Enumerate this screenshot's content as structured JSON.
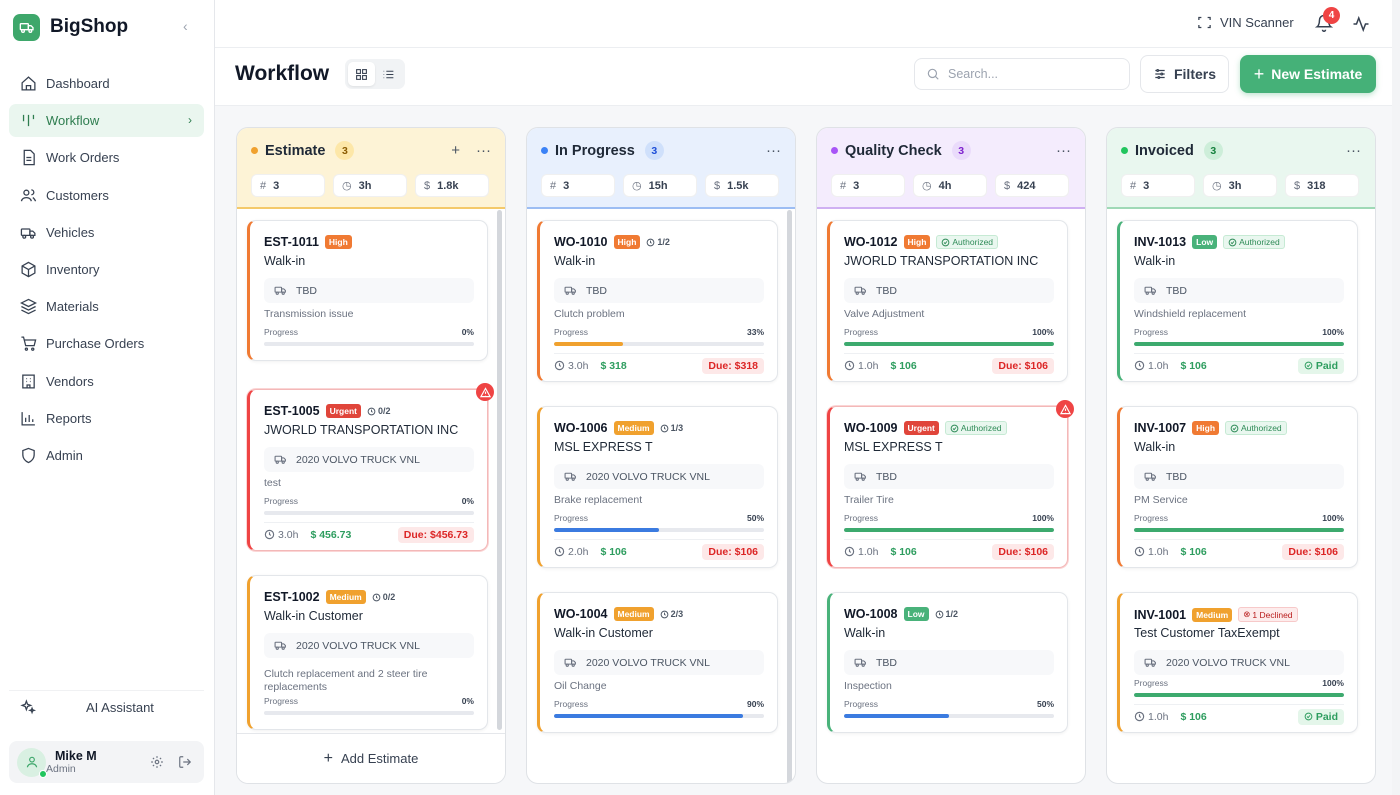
{
  "app": {
    "name": "BigShop"
  },
  "sidebar": {
    "items": [
      {
        "label": "Dashboard",
        "icon": "home-icon"
      },
      {
        "label": "Workflow",
        "icon": "workflow-icon",
        "active": true
      },
      {
        "label": "Work Orders",
        "icon": "document-icon"
      },
      {
        "label": "Customers",
        "icon": "users-icon"
      },
      {
        "label": "Vehicles",
        "icon": "truck-icon"
      },
      {
        "label": "Inventory",
        "icon": "box-icon"
      },
      {
        "label": "Materials",
        "icon": "layers-icon"
      },
      {
        "label": "Purchase Orders",
        "icon": "cart-icon"
      },
      {
        "label": "Vendors",
        "icon": "building-icon"
      },
      {
        "label": "Reports",
        "icon": "chart-icon"
      },
      {
        "label": "Admin",
        "icon": "shield-icon"
      }
    ],
    "ai_label": "AI Assistant",
    "user": {
      "name": "Mike M",
      "role": "Admin"
    }
  },
  "topbar": {
    "vin_label": "VIN Scanner",
    "notifications": "4"
  },
  "header": {
    "title": "Workflow",
    "search_placeholder": "Search...",
    "filters_label": "Filters",
    "new_estimate_label": "New Estimate"
  },
  "columns": [
    {
      "title": "Estimate",
      "count": "3",
      "dot": "#f0a12e",
      "count_bg": "#fde7a8",
      "count_color": "#8a5a00",
      "head_bg": "#fdf3d6",
      "border": "#f4c96a",
      "stats": [
        "3",
        "3h",
        "1.8k"
      ],
      "show_add": true,
      "footer": "Add Estimate",
      "cards": [
        {
          "id": "EST-1011",
          "priority": "High",
          "customer": "Walk-in",
          "vehicle": "TBD",
          "desc": "Transmission issue",
          "progress_label": "Progress",
          "progress": 0,
          "progress_text": "0%",
          "accent": "#f07a33"
        },
        {
          "id": "EST-1005",
          "priority": "Urgent",
          "tasks": "0/2",
          "customer": "JWORLD TRANSPORTATION INC",
          "vehicle": "2020 VOLVO TRUCK VNL",
          "desc": "test",
          "progress_label": "Progress",
          "progress": 0,
          "progress_text": "0%",
          "hours": "3.0h",
          "amount": "456.73",
          "due": "Due: $456.73",
          "accent": "#ef4444",
          "urgent": true
        },
        {
          "id": "EST-1002",
          "priority": "Medium",
          "tasks": "0/2",
          "customer": "Walk-in Customer",
          "vehicle": "2020 VOLVO TRUCK VNL",
          "desc": "Clutch replacement and 2 steer tire replacements",
          "progress_label": "Progress",
          "progress": 0,
          "progress_text": "0%",
          "accent": "#f0a12e"
        }
      ]
    },
    {
      "title": "In Progress",
      "count": "3",
      "dot": "#3b82f6",
      "count_bg": "#cfe0fb",
      "count_color": "#1d4ed8",
      "head_bg": "#e8f0fd",
      "border": "#9cbdf3",
      "stats": [
        "3",
        "15h",
        "1.5k"
      ],
      "cards": [
        {
          "id": "WO-1010",
          "priority": "High",
          "tasks": "1/2",
          "customer": "Walk-in",
          "vehicle": "TBD",
          "desc": "Clutch problem",
          "progress_label": "Progress",
          "progress": 33,
          "progress_text": "33%",
          "bar": "#f0a12e",
          "hours": "3.0h",
          "amount": "318",
          "due": "Due: $318",
          "accent": "#f07a33"
        },
        {
          "id": "WO-1006",
          "priority": "Medium",
          "tasks": "1/3",
          "customer": "MSL EXPRESS T",
          "vehicle": "2020 VOLVO TRUCK VNL",
          "desc": "Brake replacement",
          "progress_label": "Progress",
          "progress": 50,
          "progress_text": "50%",
          "bar": "#3b7be0",
          "hours": "2.0h",
          "amount": "106",
          "due": "Due: $106",
          "accent": "#f0a12e"
        },
        {
          "id": "WO-1004",
          "priority": "Medium",
          "tasks": "2/3",
          "customer": "Walk-in Customer",
          "vehicle": "2020 VOLVO TRUCK VNL",
          "desc": "Oil Change",
          "progress_label": "Progress",
          "progress": 90,
          "progress_text": "90%",
          "bar": "#3b7be0",
          "accent": "#f0a12e"
        }
      ]
    },
    {
      "title": "Quality Check",
      "count": "3",
      "dot": "#a855f7",
      "count_bg": "#eadbfb",
      "count_color": "#7e22ce",
      "head_bg": "#f4ecfd",
      "border": "#cfb0f2",
      "stats": [
        "3",
        "4h",
        "424"
      ],
      "cards": [
        {
          "id": "WO-1012",
          "priority": "High",
          "auth": "Authorized",
          "customer": "JWORLD TRANSPORTATION INC",
          "vehicle": "TBD",
          "desc": "Valve Adjustment",
          "progress_label": "Progress",
          "progress": 100,
          "progress_text": "100%",
          "bar": "#3daa6e",
          "hours": "1.0h",
          "amount": "106",
          "due": "Due: $106",
          "accent": "#f07a33"
        },
        {
          "id": "WO-1009",
          "priority": "Urgent",
          "auth": "Authorized",
          "customer": "MSL EXPRESS T",
          "vehicle": "TBD",
          "desc": "Trailer Tire",
          "progress_label": "Progress",
          "progress": 100,
          "progress_text": "100%",
          "bar": "#3daa6e",
          "hours": "1.0h",
          "amount": "106",
          "due": "Due: $106",
          "accent": "#ef4444",
          "urgent": true
        },
        {
          "id": "WO-1008",
          "priority": "Low",
          "tasks": "1/2",
          "customer": "Walk-in",
          "vehicle": "TBD",
          "desc": "Inspection",
          "progress_label": "Progress",
          "progress": 50,
          "progress_text": "50%",
          "bar": "#3b7be0",
          "accent": "#49b27a"
        }
      ]
    },
    {
      "title": "Invoiced",
      "count": "3",
      "dot": "#22c55e",
      "count_bg": "#cdeed9",
      "count_color": "#15803d",
      "head_bg": "#e9f7ef",
      "border": "#9fd9b6",
      "stats": [
        "3",
        "3h",
        "318"
      ],
      "cards": [
        {
          "id": "INV-1013",
          "priority": "Low",
          "auth": "Authorized",
          "customer": "Walk-in",
          "vehicle": "TBD",
          "desc": "Windshield replacement",
          "progress_label": "Progress",
          "progress": 100,
          "progress_text": "100%",
          "bar": "#3daa6e",
          "hours": "1.0h",
          "amount": "106",
          "paid": "Paid",
          "accent": "#49b27a"
        },
        {
          "id": "INV-1007",
          "priority": "High",
          "auth": "Authorized",
          "customer": "Walk-in",
          "vehicle": "TBD",
          "desc": "PM Service",
          "progress_label": "Progress",
          "progress": 100,
          "progress_text": "100%",
          "bar": "#3daa6e",
          "hours": "1.0h",
          "amount": "106",
          "due": "Due: $106",
          "accent": "#f07a33"
        },
        {
          "id": "INV-1001",
          "priority": "Medium",
          "declined": "1 Declined",
          "customer": "Test Customer TaxExempt",
          "vehicle": "2020 VOLVO TRUCK VNL",
          "desc": "",
          "progress_label": "Progress",
          "progress": 100,
          "progress_text": "100%",
          "bar": "#3daa6e",
          "hours": "1.0h",
          "amount": "106",
          "paid": "Paid",
          "accent": "#f0a12e"
        }
      ]
    }
  ]
}
